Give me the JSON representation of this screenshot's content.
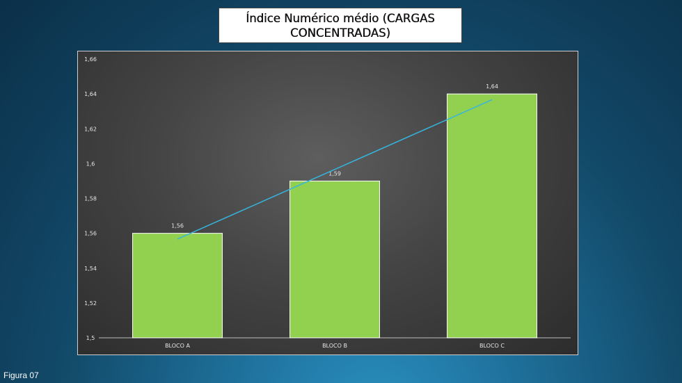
{
  "title": "Índice Numérico médio (CARGAS CONCENTRADAS)",
  "caption": "Figura 07",
  "colors": {
    "bar": "#92d050",
    "trendline": "#35b5e0"
  },
  "chart_data": {
    "type": "bar",
    "title": "Índice Numérico médio (CARGAS CONCENTRADAS)",
    "categories": [
      "BLOCO A",
      "BLOCO B",
      "BLOCO C"
    ],
    "values": [
      1.56,
      1.59,
      1.64
    ],
    "data_labels": [
      "1,56",
      "1,59",
      "1,64"
    ],
    "ylim": [
      1.5,
      1.66
    ],
    "y_ticks": [
      1.5,
      1.52,
      1.54,
      1.56,
      1.58,
      1.6,
      1.62,
      1.64,
      1.66
    ],
    "y_tick_labels": [
      "1,5",
      "1,52",
      "1,54",
      "1,56",
      "1,58",
      "1,6",
      "1,62",
      "1,64",
      "1,66"
    ],
    "trendline": "linear",
    "grid": false,
    "legend": "none",
    "xlabel": "",
    "ylabel": ""
  }
}
